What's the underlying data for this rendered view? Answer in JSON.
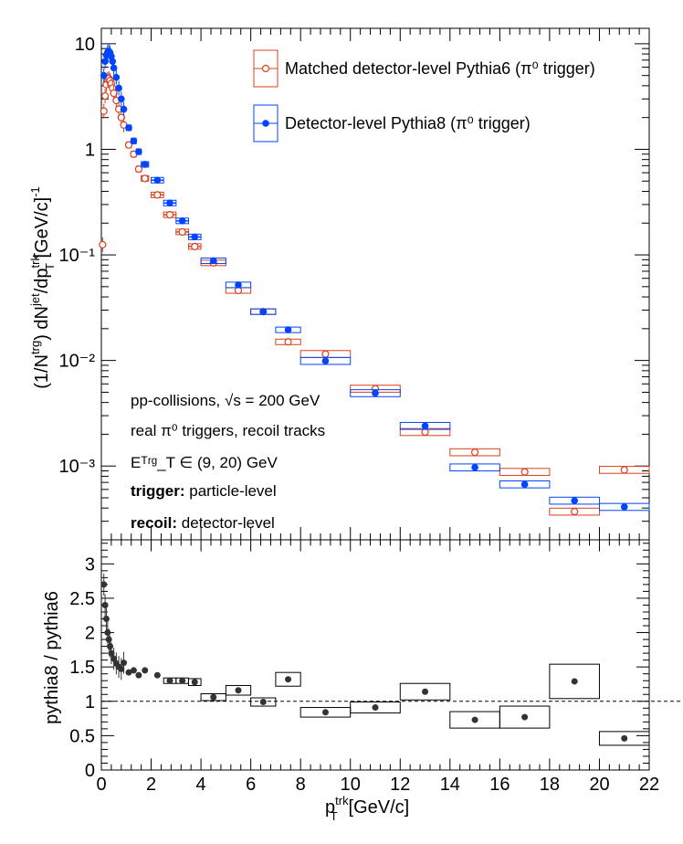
{
  "colors": {
    "pythia6": "#d8401c",
    "pythia8": "#0044ff",
    "ratio": "#333333",
    "frame": "#000000"
  },
  "legend": {
    "pythia6_label": "Matched detector-level Pythia6 (π⁰ trigger)",
    "pythia8_label": "Detector-level Pythia8 (π⁰ trigger)"
  },
  "annotations": {
    "collisions": "pp-collisions, √s = 200 GeV",
    "triggers": "real π⁰ triggers, recoil tracks",
    "et_range": "Eᵀʳᵍ_T ∈ (9, 20) GeV",
    "trigger_bold": "trigger:",
    "trigger_value": "particle-level",
    "recoil_bold": "recoil:",
    "recoil_value": "detector-level"
  },
  "chart_data": [
    {
      "type": "scatter",
      "panel": "top",
      "ylabel": "(1/Nᵗʳᵍ) dNʲᵉᵗ/dpᵀʳᵏ_T [GeV/c]⁻¹",
      "xlim": [
        0,
        22
      ],
      "ylim": [
        0.0002,
        14
      ],
      "yscale": "log",
      "y_ticks": [
        {
          "v": 10,
          "label": "10"
        },
        {
          "v": 1,
          "label": "1"
        },
        {
          "v": 0.1,
          "label": "10⁻¹"
        },
        {
          "v": 0.01,
          "label": "10⁻²"
        },
        {
          "v": 0.001,
          "label": "10⁻³"
        }
      ],
      "series": [
        {
          "name": "Matched detector-level Pythia6 (π⁰ trigger)",
          "marker": "open-circle",
          "low_pt_points": [
            {
              "x": 0.05,
              "y": 0.125
            },
            {
              "x": 0.1,
              "y": 2.3
            },
            {
              "x": 0.15,
              "y": 3.2
            },
            {
              "x": 0.2,
              "y": 4.1
            },
            {
              "x": 0.25,
              "y": 4.6
            },
            {
              "x": 0.3,
              "y": 4.7
            },
            {
              "x": 0.35,
              "y": 4.5
            },
            {
              "x": 0.4,
              "y": 4.2
            },
            {
              "x": 0.45,
              "y": 3.8
            },
            {
              "x": 0.5,
              "y": 3.4
            },
            {
              "x": 0.6,
              "y": 2.9
            },
            {
              "x": 0.7,
              "y": 2.4
            },
            {
              "x": 0.8,
              "y": 2.0
            },
            {
              "x": 0.9,
              "y": 1.7
            }
          ],
          "binned_points": [
            {
              "x": 1.1,
              "y": 1.1,
              "xlo": 1.0,
              "xhi": 1.2
            },
            {
              "x": 1.3,
              "y": 0.9,
              "xlo": 1.2,
              "xhi": 1.4
            },
            {
              "x": 1.5,
              "y": 0.65,
              "xlo": 1.4,
              "xhi": 1.6
            },
            {
              "x": 1.75,
              "y": 0.53,
              "xlo": 1.6,
              "xhi": 1.9
            },
            {
              "x": 2.25,
              "y": 0.37,
              "xlo": 2.0,
              "xhi": 2.5
            },
            {
              "x": 2.75,
              "y": 0.24,
              "xlo": 2.5,
              "xhi": 3.0
            },
            {
              "x": 3.25,
              "y": 0.165,
              "xlo": 3.0,
              "xhi": 3.5
            },
            {
              "x": 3.75,
              "y": 0.12,
              "xlo": 3.5,
              "xhi": 4.0
            },
            {
              "x": 4.5,
              "y": 0.084,
              "xlo": 4.0,
              "xhi": 5.0
            },
            {
              "x": 5.5,
              "y": 0.046,
              "xlo": 5.0,
              "xhi": 6.0
            },
            {
              "x": 6.5,
              "y": 0.029,
              "xlo": 6.0,
              "xhi": 7.0
            },
            {
              "x": 7.5,
              "y": 0.015,
              "xlo": 7.0,
              "xhi": 8.0
            },
            {
              "x": 9.0,
              "y": 0.0115,
              "xlo": 8.0,
              "xhi": 10.0
            },
            {
              "x": 11.0,
              "y": 0.0054,
              "xlo": 10.0,
              "xhi": 12.0
            },
            {
              "x": 13.0,
              "y": 0.0021,
              "xlo": 12.0,
              "xhi": 14.0
            },
            {
              "x": 15.0,
              "y": 0.00135,
              "xlo": 14.0,
              "xhi": 16.0
            },
            {
              "x": 17.0,
              "y": 0.00088,
              "xlo": 16.0,
              "xhi": 18.0
            },
            {
              "x": 19.0,
              "y": 0.00037,
              "xlo": 18.0,
              "xhi": 20.0
            },
            {
              "x": 21.0,
              "y": 0.00092,
              "xlo": 20.0,
              "xhi": 22.0
            }
          ]
        },
        {
          "name": "Detector-level Pythia8 (π⁰ trigger)",
          "marker": "filled-circle",
          "low_pt_points": [
            {
              "x": 0.1,
              "y": 5.0
            },
            {
              "x": 0.15,
              "y": 6.8
            },
            {
              "x": 0.2,
              "y": 7.8
            },
            {
              "x": 0.25,
              "y": 8.3
            },
            {
              "x": 0.3,
              "y": 8.5
            },
            {
              "x": 0.35,
              "y": 8.2
            },
            {
              "x": 0.4,
              "y": 7.6
            },
            {
              "x": 0.45,
              "y": 6.8
            },
            {
              "x": 0.5,
              "y": 5.9
            },
            {
              "x": 0.6,
              "y": 4.8
            },
            {
              "x": 0.7,
              "y": 3.8
            },
            {
              "x": 0.8,
              "y": 3.0
            },
            {
              "x": 0.9,
              "y": 2.4
            }
          ],
          "binned_points": [
            {
              "x": 1.1,
              "y": 1.6,
              "xlo": 1.0,
              "xhi": 1.2
            },
            {
              "x": 1.3,
              "y": 1.2,
              "xlo": 1.2,
              "xhi": 1.4
            },
            {
              "x": 1.5,
              "y": 0.95,
              "xlo": 1.4,
              "xhi": 1.6
            },
            {
              "x": 1.75,
              "y": 0.72,
              "xlo": 1.6,
              "xhi": 1.9
            },
            {
              "x": 2.25,
              "y": 0.51,
              "xlo": 2.0,
              "xhi": 2.5
            },
            {
              "x": 2.75,
              "y": 0.31,
              "xlo": 2.5,
              "xhi": 3.0
            },
            {
              "x": 3.25,
              "y": 0.21,
              "xlo": 3.0,
              "xhi": 3.5
            },
            {
              "x": 3.75,
              "y": 0.148,
              "xlo": 3.5,
              "xhi": 4.0
            },
            {
              "x": 4.5,
              "y": 0.088,
              "xlo": 4.0,
              "xhi": 5.0
            },
            {
              "x": 5.5,
              "y": 0.052,
              "xlo": 5.0,
              "xhi": 6.0
            },
            {
              "x": 6.5,
              "y": 0.029,
              "xlo": 6.0,
              "xhi": 7.0
            },
            {
              "x": 7.5,
              "y": 0.0195,
              "xlo": 7.0,
              "xhi": 8.0
            },
            {
              "x": 9.0,
              "y": 0.0099,
              "xlo": 8.0,
              "xhi": 10.0
            },
            {
              "x": 11.0,
              "y": 0.0049,
              "xlo": 10.0,
              "xhi": 12.0
            },
            {
              "x": 13.0,
              "y": 0.0024,
              "xlo": 12.0,
              "xhi": 14.0
            },
            {
              "x": 15.0,
              "y": 0.00097,
              "xlo": 14.0,
              "xhi": 16.0
            },
            {
              "x": 17.0,
              "y": 0.00067,
              "xlo": 16.0,
              "xhi": 18.0
            },
            {
              "x": 19.0,
              "y": 0.00047,
              "xlo": 18.0,
              "xhi": 20.0
            },
            {
              "x": 21.0,
              "y": 0.00041,
              "xlo": 20.0,
              "xhi": 22.0
            }
          ]
        }
      ]
    },
    {
      "type": "scatter",
      "panel": "bottom",
      "xlabel": "pᵀʳᵏ_T [GeV/c]",
      "ylabel": "pythia8 / pythia6",
      "xlim": [
        0,
        22
      ],
      "ylim": [
        0,
        3.35
      ],
      "reference_line": 1.0,
      "x_ticks": [
        0,
        2,
        4,
        6,
        8,
        10,
        12,
        14,
        16,
        18,
        20,
        22
      ],
      "y_ticks": [
        0,
        0.5,
        1,
        1.5,
        2,
        2.5,
        3
      ],
      "series": [
        {
          "name": "pythia8 / pythia6",
          "marker": "filled-circle",
          "low_pt_points": [
            {
              "x": 0.1,
              "y": 2.7
            },
            {
              "x": 0.15,
              "y": 2.4
            },
            {
              "x": 0.2,
              "y": 2.2
            },
            {
              "x": 0.25,
              "y": 2.0
            },
            {
              "x": 0.3,
              "y": 1.9
            },
            {
              "x": 0.35,
              "y": 1.8
            },
            {
              "x": 0.4,
              "y": 1.7
            },
            {
              "x": 0.5,
              "y": 1.62
            },
            {
              "x": 0.6,
              "y": 1.55
            },
            {
              "x": 0.7,
              "y": 1.5
            },
            {
              "x": 0.8,
              "y": 1.47
            },
            {
              "x": 0.9,
              "y": 1.56
            }
          ],
          "binned_points": [
            {
              "x": 1.1,
              "y": 1.42,
              "xlo": 1.0,
              "xhi": 1.2
            },
            {
              "x": 1.3,
              "y": 1.45,
              "xlo": 1.2,
              "xhi": 1.4
            },
            {
              "x": 1.5,
              "y": 1.38,
              "xlo": 1.4,
              "xhi": 1.6
            },
            {
              "x": 1.75,
              "y": 1.45,
              "xlo": 1.6,
              "xhi": 1.9
            },
            {
              "x": 2.25,
              "y": 1.38,
              "xlo": 2.0,
              "xhi": 2.5
            },
            {
              "x": 2.75,
              "y": 1.3,
              "xlo": 2.5,
              "xhi": 3.0
            },
            {
              "x": 3.25,
              "y": 1.3,
              "xlo": 3.0,
              "xhi": 3.5
            },
            {
              "x": 3.75,
              "y": 1.28,
              "xlo": 3.5,
              "xhi": 4.0
            },
            {
              "x": 4.5,
              "y": 1.06,
              "xlo": 4.0,
              "xhi": 5.0
            },
            {
              "x": 5.5,
              "y": 1.16,
              "xlo": 5.0,
              "xhi": 6.0
            },
            {
              "x": 6.5,
              "y": 0.99,
              "xlo": 6.0,
              "xhi": 7.0
            },
            {
              "x": 7.5,
              "y": 1.32,
              "xlo": 7.0,
              "xhi": 8.0
            },
            {
              "x": 9.0,
              "y": 0.84,
              "xlo": 8.0,
              "xhi": 10.0
            },
            {
              "x": 11.0,
              "y": 0.91,
              "xlo": 10.0,
              "xhi": 12.0
            },
            {
              "x": 13.0,
              "y": 1.14,
              "xlo": 12.0,
              "xhi": 14.0
            },
            {
              "x": 15.0,
              "y": 0.73,
              "xlo": 14.0,
              "xhi": 16.0
            },
            {
              "x": 17.0,
              "y": 0.77,
              "xlo": 16.0,
              "xhi": 18.0
            },
            {
              "x": 19.0,
              "y": 1.29,
              "xlo": 18.0,
              "xhi": 20.0
            },
            {
              "x": 21.0,
              "y": 0.46,
              "xlo": 20.0,
              "xhi": 22.0
            }
          ],
          "box_half_heights": [
            0,
            0,
            0,
            0,
            0,
            0.04,
            0.04,
            0.05,
            0.05,
            0.07,
            0.06,
            0.1,
            0.07,
            0.08,
            0.12,
            0.12,
            0.16,
            0.25,
            0.1
          ]
        }
      ]
    }
  ]
}
